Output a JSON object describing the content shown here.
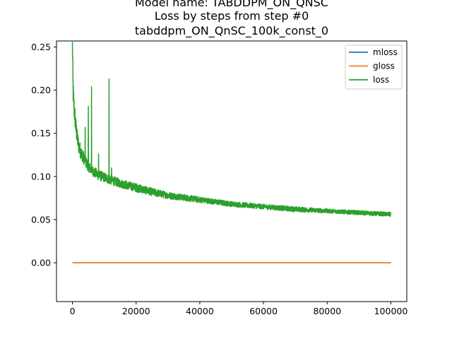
{
  "chart_data": {
    "type": "line",
    "title_lines": [
      "Model name: TABDDPM_ON_QNSC",
      "Loss by steps from step #0",
      "tabddpm_ON_QnSC_100k_const_0"
    ],
    "xlabel": "",
    "ylabel": "",
    "xlim": [
      -5000,
      105000
    ],
    "ylim": [
      -0.045,
      0.257
    ],
    "xticks": [
      0,
      20000,
      40000,
      60000,
      80000,
      100000
    ],
    "xtick_labels": [
      "0",
      "20000",
      "40000",
      "60000",
      "80000",
      "100000"
    ],
    "yticks": [
      0.0,
      0.05,
      0.1,
      0.15,
      0.2,
      0.25
    ],
    "ytick_labels": [
      "0.00",
      "0.05",
      "0.10",
      "0.15",
      "0.20",
      "0.25"
    ],
    "legend_position": "top-right",
    "grid": false,
    "series": [
      {
        "name": "mloss",
        "color": "#1f77b4",
        "x": [
          0,
          100000
        ],
        "y": [
          0.0,
          0.0
        ]
      },
      {
        "name": "gloss",
        "color": "#ff7f0e",
        "x": [
          0,
          100000
        ],
        "y": [
          0.0,
          0.0
        ]
      },
      {
        "name": "loss",
        "color": "#2ca02c",
        "x": [
          0,
          200,
          500,
          1000,
          1500,
          2000,
          3000,
          4000,
          5000,
          6000,
          8000,
          10000,
          12000,
          15000,
          20000,
          25000,
          30000,
          40000,
          50000,
          60000,
          70000,
          80000,
          90000,
          100000
        ],
        "y": [
          0.256,
          0.2,
          0.18,
          0.16,
          0.145,
          0.135,
          0.125,
          0.118,
          0.112,
          0.107,
          0.102,
          0.099,
          0.096,
          0.092,
          0.087,
          0.082,
          0.078,
          0.073,
          0.068,
          0.065,
          0.062,
          0.06,
          0.058,
          0.056
        ],
        "band": [
          0.04,
          0.03,
          0.025,
          0.022,
          0.02,
          0.018,
          0.016,
          0.014,
          0.013,
          0.012,
          0.012,
          0.011,
          0.011,
          0.01,
          0.01,
          0.009,
          0.008,
          0.007,
          0.006,
          0.006,
          0.006,
          0.005,
          0.005,
          0.005
        ],
        "spikes": [
          {
            "x": 200,
            "y": 0.205
          },
          {
            "x": 4000,
            "y": 0.157
          },
          {
            "x": 5000,
            "y": 0.181
          },
          {
            "x": 6000,
            "y": 0.204
          },
          {
            "x": 8200,
            "y": 0.126
          },
          {
            "x": 11500,
            "y": 0.213
          },
          {
            "x": 12300,
            "y": 0.11
          }
        ]
      }
    ]
  }
}
